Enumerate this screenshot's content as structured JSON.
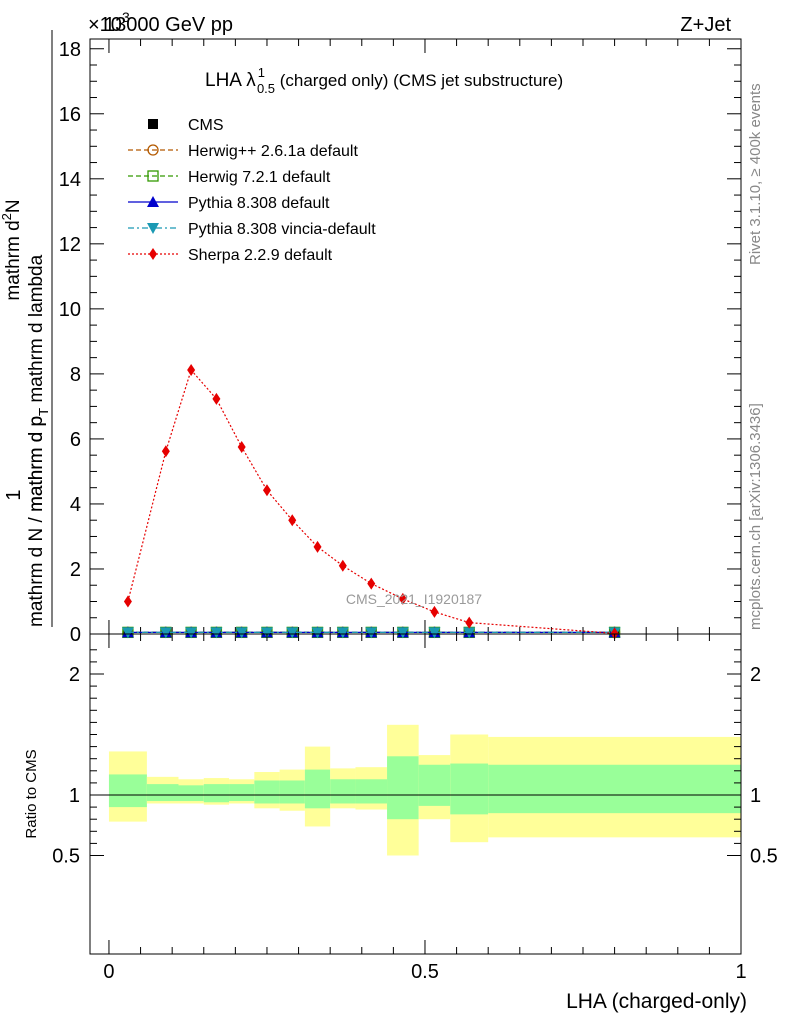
{
  "header": {
    "energy": "13000 GeV pp",
    "process": "Z+Jet",
    "exponent": "×10",
    "exponent_power": "3"
  },
  "side_labels": {
    "rivet": "Rivet 3.1.10, ≥ 400k events",
    "mcplots": "mcplots.cern.ch [arXiv:1306.3436]"
  },
  "watermark": "CMS_2021_I1920187",
  "chart_data": [
    {
      "type": "line",
      "title": "LHA λ^1_0.5 (charged only) (CMS jet substructure)",
      "title_parts": {
        "main": "LHA λ",
        "sup": "1",
        "sub": "0.5",
        "rest": " (charged only) (CMS jet substructure)"
      },
      "ylabel": "1 / (mathrm d N / mathrm d p_T) · mathrm d^2N / (mathrm d p_T mathrm d lambda)",
      "ylabel_parts": {
        "one": "1",
        "denominator": "mathrm d N / mathrm d p",
        "denominator_sub": "T",
        "numerator_a": "mathrm d",
        "numerator_sup": "2",
        "numerator_b": "N",
        "lower_a": "mathrm d p",
        "lower_sub": "T",
        "lower_b": " mathrm d lambda"
      },
      "ylim": [
        0,
        18.3
      ],
      "yticks": [
        0,
        2,
        4,
        6,
        8,
        10,
        12,
        14,
        16,
        18
      ],
      "ytick_labels": [
        "0",
        "2",
        "4",
        "6",
        "8",
        "10",
        "12",
        "14",
        "16",
        "18"
      ],
      "xlim": [
        -0.03,
        1.0
      ],
      "legend": [
        "CMS",
        "Herwig++ 2.6.1a default",
        "Herwig 7.2.1 default",
        "Pythia 8.308 default",
        "Pythia 8.308 vincia-default",
        "Sherpa 2.2.9 default"
      ],
      "legend_position": "top-left",
      "series": [
        {
          "name": "CMS",
          "color": "#000000",
          "marker": "square",
          "line": "none",
          "x": [
            0.03,
            0.09,
            0.13,
            0.17,
            0.21,
            0.25,
            0.29,
            0.33,
            0.37,
            0.415,
            0.465,
            0.515,
            0.57,
            0.8
          ],
          "y": [
            0.05,
            0.05,
            0.05,
            0.05,
            0.05,
            0.05,
            0.05,
            0.05,
            0.05,
            0.05,
            0.05,
            0.05,
            0.05,
            0.05
          ]
        },
        {
          "name": "Herwig++ 2.6.1a default",
          "color": "#b35900",
          "marker": "circle-open",
          "line": "dashed",
          "x": [
            0.03,
            0.09,
            0.13,
            0.17,
            0.21,
            0.25,
            0.29,
            0.33,
            0.37,
            0.415,
            0.465,
            0.515,
            0.57,
            0.8
          ],
          "y": [
            0.05,
            0.05,
            0.05,
            0.05,
            0.05,
            0.05,
            0.05,
            0.05,
            0.05,
            0.05,
            0.05,
            0.05,
            0.05,
            0.05
          ]
        },
        {
          "name": "Herwig 7.2.1 default",
          "color": "#339900",
          "marker": "square-open",
          "line": "dashed",
          "x": [
            0.03,
            0.09,
            0.13,
            0.17,
            0.21,
            0.25,
            0.29,
            0.33,
            0.37,
            0.415,
            0.465,
            0.515,
            0.57,
            0.8
          ],
          "y": [
            0.05,
            0.05,
            0.05,
            0.05,
            0.05,
            0.05,
            0.05,
            0.05,
            0.05,
            0.05,
            0.05,
            0.05,
            0.05,
            0.05
          ]
        },
        {
          "name": "Pythia 8.308 default",
          "color": "#0000cc",
          "marker": "triangle-up",
          "line": "solid",
          "x": [
            0.03,
            0.09,
            0.13,
            0.17,
            0.21,
            0.25,
            0.29,
            0.33,
            0.37,
            0.415,
            0.465,
            0.515,
            0.57,
            0.8
          ],
          "y": [
            0.05,
            0.05,
            0.05,
            0.05,
            0.05,
            0.05,
            0.05,
            0.05,
            0.05,
            0.05,
            0.05,
            0.05,
            0.05,
            0.05
          ]
        },
        {
          "name": "Pythia 8.308 vincia-default",
          "color": "#1a99b3",
          "marker": "triangle-down",
          "line": "dashdot",
          "x": [
            0.03,
            0.09,
            0.13,
            0.17,
            0.21,
            0.25,
            0.29,
            0.33,
            0.37,
            0.415,
            0.465,
            0.515,
            0.57,
            0.8
          ],
          "y": [
            0.05,
            0.05,
            0.05,
            0.05,
            0.05,
            0.05,
            0.05,
            0.05,
            0.05,
            0.05,
            0.05,
            0.05,
            0.05,
            0.05
          ]
        },
        {
          "name": "Sherpa 2.2.9 default",
          "color": "#e60000",
          "marker": "diamond",
          "line": "dotted",
          "x": [
            0.03,
            0.09,
            0.13,
            0.17,
            0.21,
            0.25,
            0.29,
            0.33,
            0.37,
            0.415,
            0.465,
            0.515,
            0.57,
            0.8
          ],
          "y": [
            1.0,
            5.62,
            8.12,
            7.23,
            5.75,
            4.42,
            3.5,
            2.68,
            2.1,
            1.55,
            1.08,
            0.68,
            0.35,
            0.02
          ]
        }
      ]
    },
    {
      "type": "area",
      "ylabel": "Ratio to CMS",
      "xlabel": "LHA (charged-only)",
      "xlim": [
        -0.03,
        1.0
      ],
      "ylim": [
        0.33,
        2.33
      ],
      "yticks": [
        0.5,
        1,
        2
      ],
      "ytick_labels": [
        "0.5",
        "1",
        "2"
      ],
      "xticks": [
        0,
        0.5,
        1
      ],
      "xtick_labels": [
        "0",
        "0.5",
        "1"
      ],
      "reference_line": 1,
      "bin_edges": [
        0,
        0.06,
        0.11,
        0.15,
        0.19,
        0.23,
        0.27,
        0.31,
        0.35,
        0.39,
        0.44,
        0.49,
        0.54,
        0.6,
        1.0
      ],
      "stat_band": {
        "color": "#99ff99",
        "low": [
          0.9,
          0.95,
          0.95,
          0.94,
          0.95,
          0.93,
          0.93,
          0.89,
          0.93,
          0.93,
          0.8,
          0.91,
          0.84,
          0.85
        ],
        "high": [
          1.17,
          1.09,
          1.08,
          1.09,
          1.09,
          1.12,
          1.12,
          1.21,
          1.13,
          1.13,
          1.32,
          1.25,
          1.26,
          1.25
        ]
      },
      "total_band": {
        "color": "#ffff99",
        "low": [
          0.78,
          0.93,
          0.93,
          0.92,
          0.93,
          0.89,
          0.87,
          0.74,
          0.89,
          0.88,
          0.5,
          0.8,
          0.61,
          0.65
        ],
        "high": [
          1.36,
          1.15,
          1.13,
          1.14,
          1.13,
          1.19,
          1.21,
          1.4,
          1.22,
          1.23,
          1.58,
          1.33,
          1.5,
          1.48
        ]
      }
    }
  ]
}
